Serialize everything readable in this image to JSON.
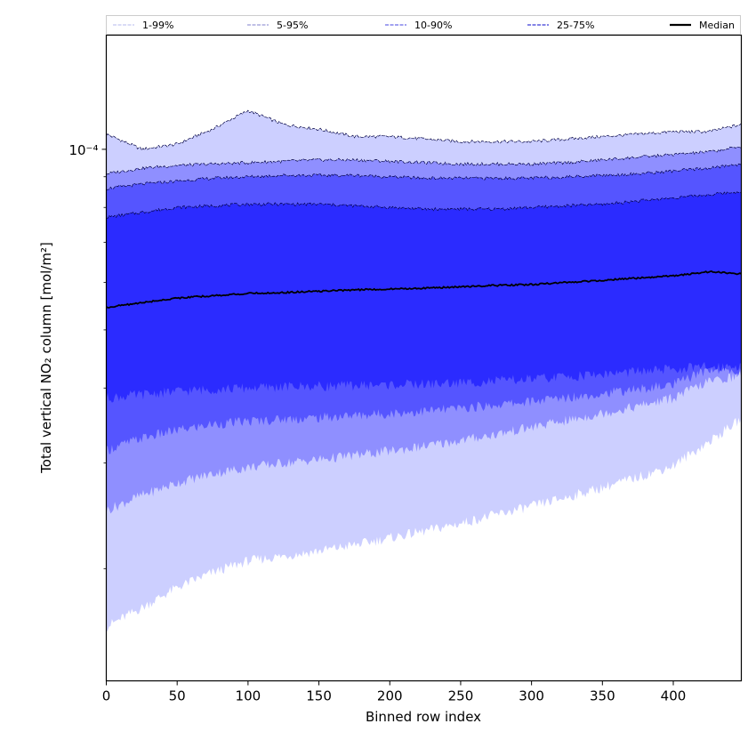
{
  "chart_data": {
    "type": "area",
    "xlabel": "Binned row index",
    "ylabel": "Total vertical NO₂ column [mol/m²]",
    "x_ticks": [
      0,
      50,
      100,
      150,
      200,
      250,
      300,
      350,
      400
    ],
    "x_tick_labels": [
      "0",
      "50",
      "100",
      "150",
      "200",
      "250",
      "300",
      "350",
      "400"
    ],
    "xlim": [
      0,
      448
    ],
    "y_scale": "log",
    "ylim": [
      1.3e-05,
      0.000155
    ],
    "y_major_tick": 0.0001,
    "y_major_tick_label": "10⁻⁴",
    "y_minor_ticks": [
      2e-05,
      3e-05,
      4e-05,
      5e-05,
      6e-05,
      7e-05,
      8e-05,
      9e-05
    ],
    "grid": false,
    "legend_position": "top",
    "x": [
      0,
      25,
      50,
      75,
      100,
      125,
      150,
      175,
      200,
      225,
      250,
      275,
      300,
      325,
      350,
      375,
      400,
      425,
      448
    ],
    "bands": [
      {
        "name": "1-99%",
        "color": "#cccfff",
        "line_color": "#c4c6f0",
        "lower": [
          1.6e-05,
          1.72e-05,
          1.86e-05,
          1.97e-05,
          2.06e-05,
          2.1e-05,
          2.14e-05,
          2.19e-05,
          2.25e-05,
          2.31e-05,
          2.38e-05,
          2.46e-05,
          2.54e-05,
          2.63e-05,
          2.73e-05,
          2.84e-05,
          2.97e-05,
          3.25e-05,
          3.55e-05
        ],
        "upper": [
          0.000106,
          0.0001,
          0.000102,
          0.000108,
          0.000116,
          0.00011,
          0.000108,
          0.000105,
          0.000105,
          0.000104,
          0.000103,
          0.000103,
          0.000103,
          0.000104,
          0.000105,
          0.000106,
          0.000107,
          0.000107,
          0.00011
        ]
      },
      {
        "name": "5-95%",
        "color": "#8f8fff",
        "line_color": "#9a9ad8",
        "lower": [
          2.5e-05,
          2.65e-05,
          2.78e-05,
          2.88e-05,
          2.95e-05,
          3e-05,
          3.04e-05,
          3.09e-05,
          3.14e-05,
          3.2e-05,
          3.27e-05,
          3.35e-05,
          3.44e-05,
          3.53e-05,
          3.63e-05,
          3.73e-05,
          3.85e-05,
          4.1e-05,
          4.2e-05
        ],
        "upper": [
          9.1e-05,
          9.3e-05,
          9.4e-05,
          9.45e-05,
          9.5e-05,
          9.55e-05,
          9.6e-05,
          9.6e-05,
          9.55e-05,
          9.5e-05,
          9.45e-05,
          9.45e-05,
          9.45e-05,
          9.5e-05,
          9.6e-05,
          9.7e-05,
          9.8e-05,
          9.9e-05,
          0.000101
        ]
      },
      {
        "name": "10-90%",
        "color": "#5555ff",
        "line_color": "#6a6ae6",
        "lower": [
          3.15e-05,
          3.3e-05,
          3.4e-05,
          3.48e-05,
          3.52e-05,
          3.55e-05,
          3.57e-05,
          3.6e-05,
          3.63e-05,
          3.66e-05,
          3.7e-05,
          3.75e-05,
          3.8e-05,
          3.86e-05,
          3.92e-05,
          3.98e-05,
          4.05e-05,
          4.3e-05,
          4.25e-05
        ],
        "upper": [
          8.6e-05,
          8.75e-05,
          8.85e-05,
          8.95e-05,
          9e-05,
          9.05e-05,
          9.05e-05,
          9.05e-05,
          9e-05,
          8.95e-05,
          8.95e-05,
          8.95e-05,
          8.95e-05,
          9e-05,
          9.05e-05,
          9.1e-05,
          9.2e-05,
          9.3e-05,
          9.45e-05
        ]
      },
      {
        "name": "25-75%",
        "color": "#2b2bff",
        "line_color": "#3a3ad8",
        "lower": [
          3.85e-05,
          3.9e-05,
          3.95e-05,
          3.98e-05,
          4e-05,
          4.02e-05,
          4.03e-05,
          4.04e-05,
          4.05e-05,
          4.06e-05,
          4.08e-05,
          4.11e-05,
          4.14e-05,
          4.18e-05,
          4.22e-05,
          4.26e-05,
          4.3e-05,
          4.34e-05,
          4.36e-05
        ],
        "upper": [
          7.7e-05,
          7.85e-05,
          8e-05,
          8.05e-05,
          8.1e-05,
          8.1e-05,
          8.1e-05,
          8.05e-05,
          8e-05,
          7.95e-05,
          7.95e-05,
          7.95e-05,
          8e-05,
          8.05e-05,
          8.1e-05,
          8.2e-05,
          8.3e-05,
          8.4e-05,
          8.5e-05
        ]
      }
    ],
    "median": {
      "name": "Median",
      "color": "#000000",
      "values": [
        5.45e-05,
        5.55e-05,
        5.65e-05,
        5.7e-05,
        5.75e-05,
        5.77e-05,
        5.8e-05,
        5.83e-05,
        5.85e-05,
        5.87e-05,
        5.9e-05,
        5.93e-05,
        5.95e-05,
        6e-05,
        6.05e-05,
        6.1e-05,
        6.15e-05,
        6.25e-05,
        6.2e-05
      ]
    },
    "legend": [
      {
        "label": "1-99%",
        "color": "#c4c6f0",
        "dashed": true
      },
      {
        "label": "5-95%",
        "color": "#9a9ad8",
        "dashed": true
      },
      {
        "label": "10-90%",
        "color": "#6a6ae6",
        "dashed": true
      },
      {
        "label": "25-75%",
        "color": "#3a3ad8",
        "dashed": true
      },
      {
        "label": "Median",
        "color": "#000000",
        "dashed": false
      }
    ]
  }
}
